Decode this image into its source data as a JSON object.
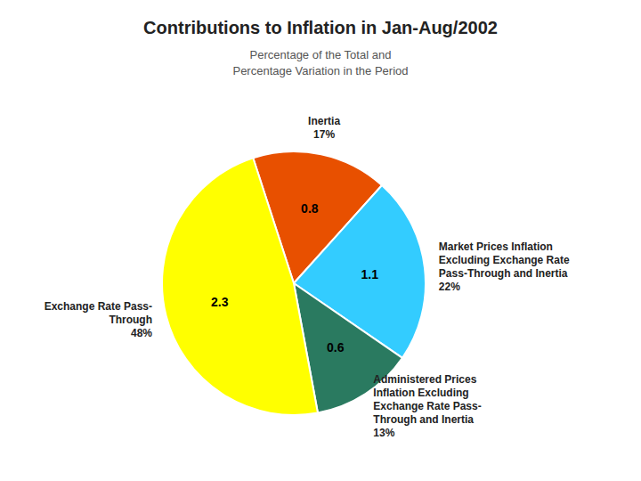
{
  "chart_data": {
    "type": "pie",
    "title": "Contributions to Inflation in Jan-Aug/2002",
    "subtitle": [
      "Percentage of the Total and",
      "Percentage Variation in the Period"
    ],
    "categories": [
      "Inertia",
      "Market Prices Inflation\nExcluding Exchange Rate\nPass-Through and Inertia",
      "Administered Prices\nInflation Excluding\nExchange Rate Pass-\nThrough and Inertia",
      "Exchange Rate Pass-\nThrough"
    ],
    "values": [
      0.8,
      1.1,
      0.6,
      2.3
    ],
    "shares": [
      17,
      22,
      13,
      48
    ],
    "share_labels": [
      "17%",
      "22%",
      "13%",
      "48%"
    ],
    "colors": [
      "#e85000",
      "#33ccff",
      "#2a7a60",
      "#ffff00"
    ],
    "data_labels": true
  }
}
